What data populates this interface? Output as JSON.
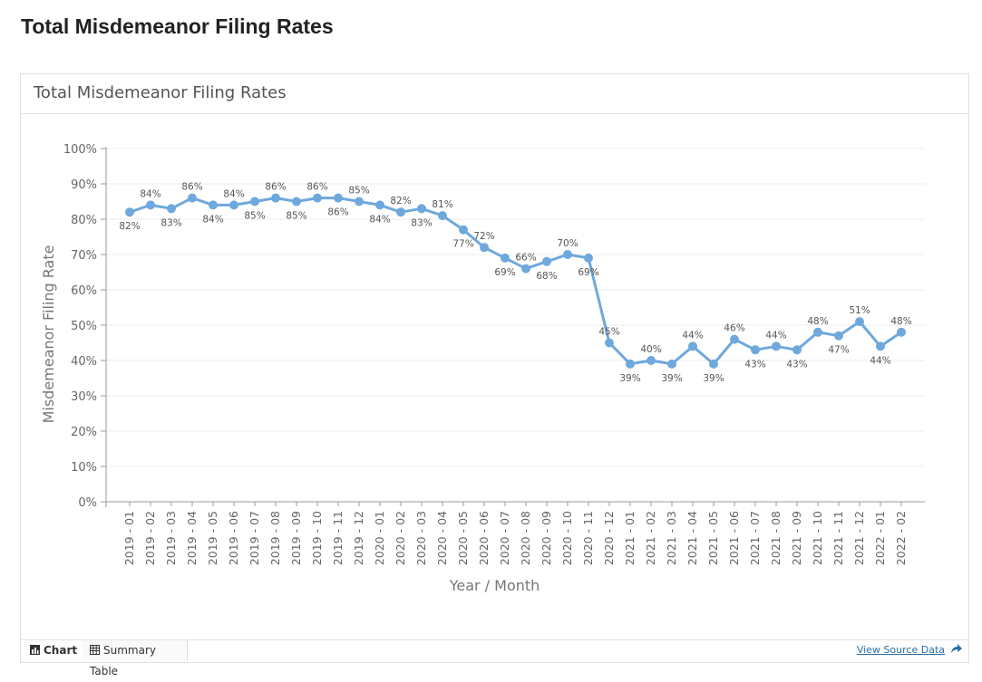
{
  "page": {
    "title": "Total Misdemeanor Filing Rates"
  },
  "panel": {
    "title": "Total Misdemeanor Filing Rates"
  },
  "footer": {
    "tabs": [
      {
        "label": "Chart",
        "icon": "bar-chart-icon",
        "active": true
      },
      {
        "label": "Summary Table",
        "icon": "table-icon",
        "active": false
      }
    ],
    "source_link": "View Source Data",
    "source_icon": "share-arrow-icon"
  },
  "chart_data": {
    "type": "line",
    "title": "Total Misdemeanor Filing Rates",
    "xlabel": "Year / Month",
    "ylabel": "Misdemeanor Filing Rate",
    "ylim": [
      0,
      100
    ],
    "yticks": [
      "0%",
      "10%",
      "20%",
      "30%",
      "40%",
      "50%",
      "60%",
      "70%",
      "80%",
      "90%",
      "100%"
    ],
    "grid": true,
    "line_color": "#6fa8dc",
    "categories": [
      "2019 - 01",
      "2019 - 02",
      "2019 - 03",
      "2019 - 04",
      "2019 - 05",
      "2019 - 06",
      "2019 - 07",
      "2019 - 08",
      "2019 - 09",
      "2019 - 10",
      "2019 - 11",
      "2019 - 12",
      "2020 - 01",
      "2020 - 02",
      "2020 - 03",
      "2020 - 04",
      "2020 - 05",
      "2020 - 06",
      "2020 - 07",
      "2020 - 08",
      "2020 - 09",
      "2020 - 10",
      "2020 - 11",
      "2020 - 12",
      "2021 - 01",
      "2021 - 02",
      "2021 - 03",
      "2021 - 04",
      "2021 - 05",
      "2021 - 06",
      "2021 - 07",
      "2021 - 08",
      "2021 - 09",
      "2021 - 10",
      "2021 - 11",
      "2021 - 12",
      "2022 - 01",
      "2022 - 02"
    ],
    "values": [
      82,
      84,
      83,
      86,
      84,
      84,
      85,
      86,
      85,
      86,
      86,
      85,
      84,
      82,
      83,
      81,
      77,
      72,
      69,
      66,
      68,
      70,
      69,
      45,
      39,
      40,
      39,
      44,
      39,
      46,
      43,
      44,
      43,
      48,
      47,
      51,
      44,
      48
    ],
    "labels": [
      "82%",
      "84%",
      "83%",
      "86%",
      "84%",
      "84%",
      "85%",
      "86%",
      "85%",
      "86%",
      "86%",
      "85%",
      "84%",
      "82%",
      "83%",
      "81%",
      "77%",
      "72%",
      "69%",
      "66%",
      "68%",
      "70%",
      "69%",
      "45%",
      "39%",
      "40%",
      "39%",
      "44%",
      "39%",
      "46%",
      "43%",
      "44%",
      "43%",
      "48%",
      "47%",
      "51%",
      "44%",
      "48%"
    ]
  }
}
